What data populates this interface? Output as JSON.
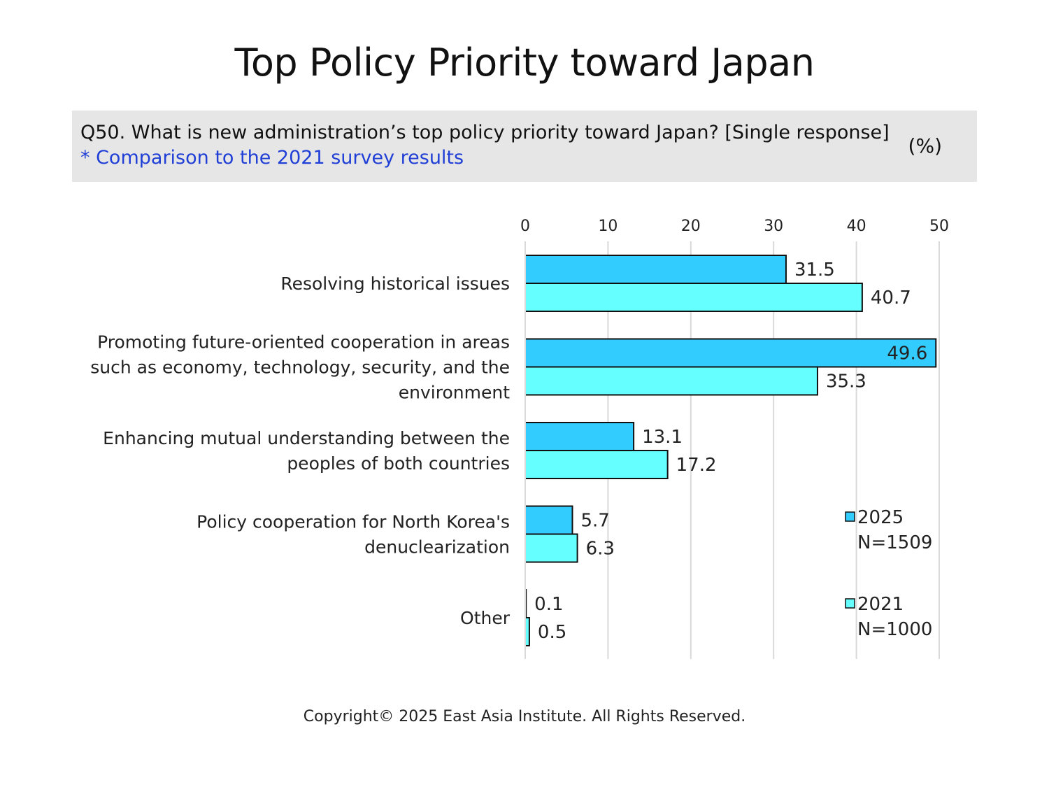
{
  "page": {
    "title": "Top Policy Priority toward Japan",
    "question": "Q50. What is new administration’s top policy priority toward Japan? [Single response]",
    "note": "* Comparison to the 2021 survey results",
    "unit": "(%)",
    "copyright": "Copyright© 2025 East Asia Institute. All Rights Reserved."
  },
  "chart_data": {
    "type": "bar",
    "orientation": "horizontal",
    "categories": [
      "Resolving historical issues",
      "Promoting future-oriented cooperation in areas such as economy, technology, security, and the environment",
      "Enhancing mutual understanding between the peoples of both countries",
      "Policy cooperation for North Korea's denuclearization",
      "Other"
    ],
    "category_lines": [
      [
        "Resolving historical issues"
      ],
      [
        "Promoting future-oriented cooperation in areas",
        "such as economy, technology, security, and the",
        "environment"
      ],
      [
        "Enhancing mutual understanding between the",
        "peoples of both countries"
      ],
      [
        "Policy cooperation for North Korea's",
        "denuclearization"
      ],
      [
        "Other"
      ]
    ],
    "series": [
      {
        "name": "2025",
        "legend_lines": [
          "2025",
          "N=1509"
        ],
        "color": "#33ccff",
        "values": [
          31.5,
          49.6,
          13.1,
          5.7,
          0.1
        ]
      },
      {
        "name": "2021",
        "legend_lines": [
          "2021",
          "N=1000"
        ],
        "color": "#66ffff",
        "values": [
          40.7,
          35.3,
          17.2,
          6.3,
          0.5
        ]
      }
    ],
    "xlim": [
      0,
      50
    ],
    "xticks": [
      0,
      10,
      20,
      30,
      40,
      50
    ],
    "grid": true,
    "x_axis_position": "top",
    "legend_position": "bottom-right"
  }
}
